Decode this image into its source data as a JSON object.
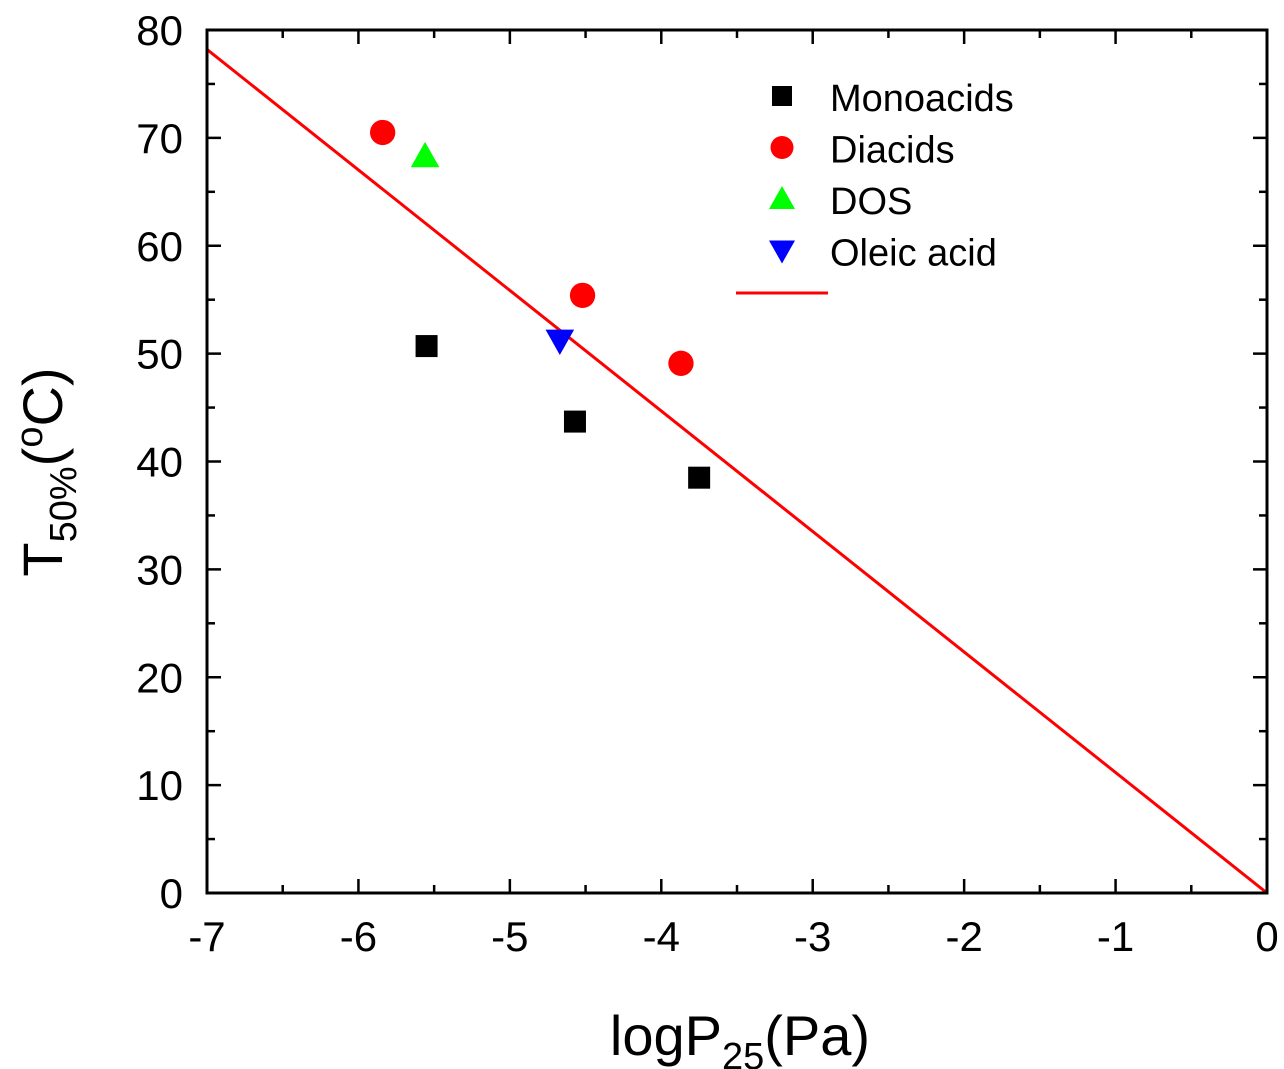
{
  "chart_data": {
    "type": "scatter",
    "title": "",
    "xlabel": {
      "main": "logP",
      "sub": "25",
      "unit": "(Pa)"
    },
    "ylabel": {
      "main": "T",
      "sub": "50%",
      "unit_pre": "(",
      "unit_sup": "o",
      "unit_post": "C)"
    },
    "xlim": [
      -7,
      0
    ],
    "ylim": [
      0,
      80
    ],
    "x_ticks": [
      -7,
      -6,
      -5,
      -4,
      -3,
      -2,
      -1,
      0
    ],
    "y_ticks": [
      0,
      10,
      20,
      30,
      40,
      50,
      60,
      70,
      80
    ],
    "x_tick_labels": [
      "-7",
      "-6",
      "-5",
      "-4",
      "-3",
      "-2",
      "-1",
      "0"
    ],
    "y_tick_labels": [
      "0",
      "10",
      "20",
      "30",
      "40",
      "50",
      "60",
      "70",
      "80"
    ],
    "grid": false,
    "legend_position": "top-right",
    "series": [
      {
        "name": "Monoacids",
        "marker": "square",
        "color": "#000000",
        "x": [
          -5.55,
          -4.57,
          -3.75
        ],
        "y": [
          50.7,
          43.7,
          38.5
        ]
      },
      {
        "name": "Diacids",
        "marker": "circle",
        "color": "#ff0000",
        "x": [
          -5.84,
          -4.52,
          -3.87
        ],
        "y": [
          70.5,
          55.4,
          49.1
        ]
      },
      {
        "name": "DOS",
        "marker": "triangle-up",
        "color": "#00ff00",
        "x": [
          -5.56
        ],
        "y": [
          68.3
        ]
      },
      {
        "name": "Oleic acid",
        "marker": "triangle-down",
        "color": "#0000ff",
        "x": [
          -4.67
        ],
        "y": [
          51.2
        ]
      },
      {
        "name": "",
        "marker": "line",
        "color": "#ff0000",
        "x": [
          -7,
          0
        ],
        "y": [
          78.2,
          0
        ]
      }
    ]
  }
}
